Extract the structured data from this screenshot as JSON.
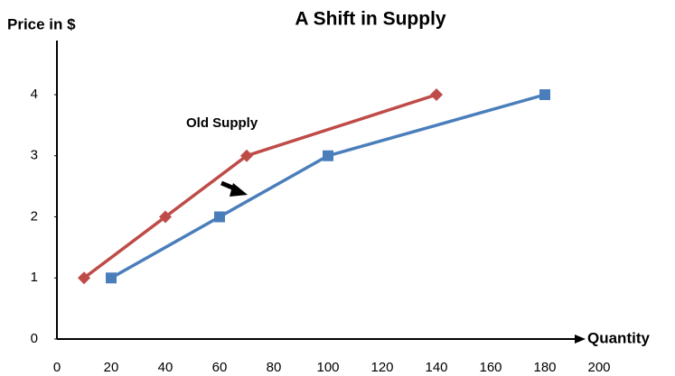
{
  "chart_data": {
    "type": "line",
    "title": "A Shift in Supply",
    "ylabel": "Price in $",
    "xlabel": "Quantity",
    "annotations": [
      "Old Supply"
    ],
    "series": [
      {
        "name": "Old Supply",
        "color": "#be4b48",
        "marker": "diamond",
        "x": [
          10,
          40,
          70,
          140
        ],
        "values": [
          1,
          2,
          3,
          4
        ]
      },
      {
        "color": "#4a7ebb",
        "marker": "square",
        "x": [
          20,
          60,
          100,
          180
        ],
        "values": [
          1,
          2,
          3,
          4
        ]
      }
    ],
    "xlim": [
      0,
      200
    ],
    "xticks": [
      0,
      20,
      40,
      60,
      80,
      100,
      120,
      140,
      160,
      180,
      200
    ],
    "ylim": [
      0,
      5
    ],
    "yticks": [
      0,
      1,
      2,
      3,
      4
    ],
    "grid": false
  }
}
